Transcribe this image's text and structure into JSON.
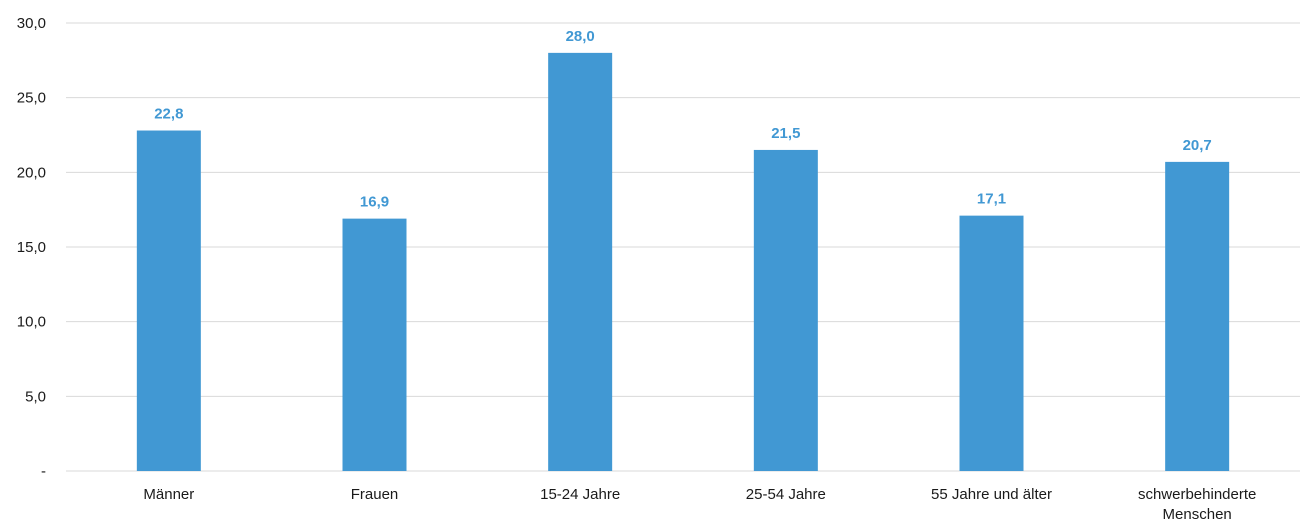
{
  "chart_data": {
    "type": "bar",
    "title": "",
    "xlabel": "",
    "ylabel": "",
    "categories": [
      [
        "Männer"
      ],
      [
        "Frauen"
      ],
      [
        "15-24 Jahre"
      ],
      [
        "25-54 Jahre"
      ],
      [
        "55 Jahre und älter"
      ],
      [
        "schwerbehinderte",
        "Menschen"
      ]
    ],
    "values": [
      22.8,
      16.9,
      28.0,
      21.5,
      17.1,
      20.7
    ],
    "value_labels": [
      "22,8",
      "16,9",
      "28,0",
      "21,5",
      "17,1",
      "20,7"
    ],
    "ylim": [
      0,
      30
    ],
    "yticks": [
      0,
      5,
      10,
      15,
      20,
      25,
      30
    ],
    "ytick_labels": [
      "-",
      "5,0",
      "10,0",
      "15,0",
      "20,0",
      "25,0",
      "30,0"
    ],
    "grid": true,
    "legend": "none",
    "colors": {
      "bar": "#4198d3",
      "data_label": "#4198d3",
      "grid": "#d9d9d9"
    }
  }
}
